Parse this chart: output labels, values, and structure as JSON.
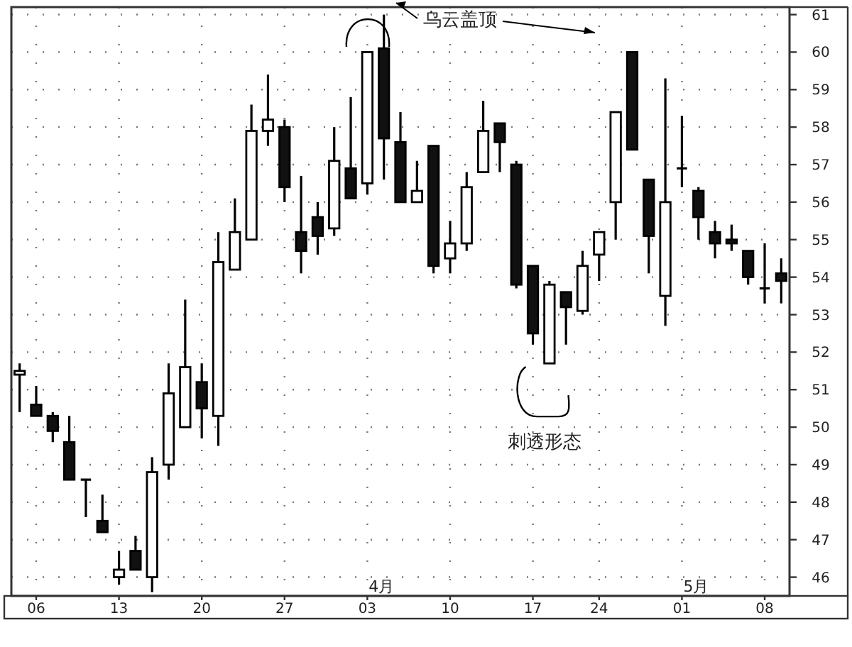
{
  "chart_data": {
    "type": "candlestick",
    "categories": [
      null,
      "06",
      null,
      null,
      null,
      null,
      "13",
      null,
      null,
      null,
      null,
      "20",
      null,
      null,
      null,
      null,
      "27",
      null,
      null,
      null,
      null,
      "03",
      null,
      null,
      null,
      null,
      "10",
      null,
      null,
      null,
      null,
      "17",
      null,
      null,
      null,
      "24",
      null,
      null,
      null,
      null,
      "01",
      null,
      null,
      null,
      null,
      "08",
      null
    ],
    "ohlc": [
      [
        51.4,
        51.7,
        50.4,
        51.5
      ],
      [
        50.6,
        51.1,
        50.3,
        50.3
      ],
      [
        50.3,
        50.4,
        49.6,
        49.9
      ],
      [
        49.6,
        50.3,
        48.6,
        48.6
      ],
      [
        48.6,
        48.6,
        47.6,
        48.6
      ],
      [
        47.5,
        48.2,
        47.2,
        47.2
      ],
      [
        46.0,
        46.7,
        45.8,
        46.2
      ],
      [
        46.7,
        47.1,
        46.2,
        46.2
      ],
      [
        46.0,
        49.2,
        45.6,
        48.8
      ],
      [
        49.0,
        51.7,
        48.6,
        50.9
      ],
      [
        50.0,
        53.4,
        50.0,
        51.6
      ],
      [
        51.2,
        51.7,
        49.7,
        50.5
      ],
      [
        50.3,
        55.2,
        49.5,
        54.4
      ],
      [
        54.2,
        56.1,
        54.2,
        55.2
      ],
      [
        55.0,
        58.6,
        55.0,
        57.9
      ],
      [
        57.9,
        59.4,
        57.5,
        58.2
      ],
      [
        58.0,
        58.2,
        56.0,
        56.4
      ],
      [
        55.2,
        56.7,
        54.1,
        54.7
      ],
      [
        55.6,
        56.0,
        54.6,
        55.1
      ],
      [
        55.3,
        58.0,
        55.1,
        57.1
      ],
      [
        56.9,
        58.8,
        56.1,
        56.1
      ],
      [
        56.5,
        60.0,
        56.2,
        60.0
      ],
      [
        60.1,
        61.0,
        56.6,
        57.7
      ],
      [
        57.6,
        58.4,
        56.0,
        56.0
      ],
      [
        56.0,
        57.1,
        56.0,
        56.3
      ],
      [
        57.5,
        57.5,
        54.1,
        54.3
      ],
      [
        54.5,
        55.5,
        54.1,
        54.9
      ],
      [
        54.9,
        56.8,
        54.7,
        56.4
      ],
      [
        56.8,
        58.7,
        56.8,
        57.9
      ],
      [
        58.1,
        58.1,
        56.8,
        57.6
      ],
      [
        57.0,
        57.1,
        53.7,
        53.8
      ],
      [
        54.3,
        54.3,
        52.2,
        52.5
      ],
      [
        51.7,
        53.9,
        51.7,
        53.8
      ],
      [
        53.6,
        53.6,
        52.2,
        53.2
      ],
      [
        53.1,
        54.7,
        53.0,
        54.3
      ],
      [
        54.6,
        55.2,
        53.9,
        55.2
      ],
      [
        56.0,
        58.4,
        55.0,
        58.4
      ],
      [
        60.0,
        60.0,
        57.4,
        57.4
      ],
      [
        56.6,
        56.6,
        54.1,
        55.1
      ],
      [
        53.5,
        59.3,
        52.7,
        56.0
      ],
      [
        56.9,
        58.3,
        56.4,
        56.9
      ],
      [
        56.3,
        56.4,
        55.0,
        55.6
      ],
      [
        55.2,
        55.5,
        54.5,
        54.9
      ],
      [
        55.0,
        55.4,
        54.7,
        54.9
      ],
      [
        54.7,
        54.7,
        53.8,
        54.0
      ],
      [
        53.7,
        54.9,
        53.3,
        53.7
      ],
      [
        54.1,
        54.5,
        53.3,
        53.9
      ]
    ],
    "ylim": [
      45.5,
      61.2
    ],
    "yticks": [
      46,
      47,
      48,
      49,
      50,
      51,
      52,
      53,
      54,
      55,
      56,
      57,
      58,
      59,
      60,
      61
    ],
    "grid": true,
    "annotations": [
      "乌云盖顶",
      "刺透形态",
      "4月",
      "5月"
    ]
  }
}
